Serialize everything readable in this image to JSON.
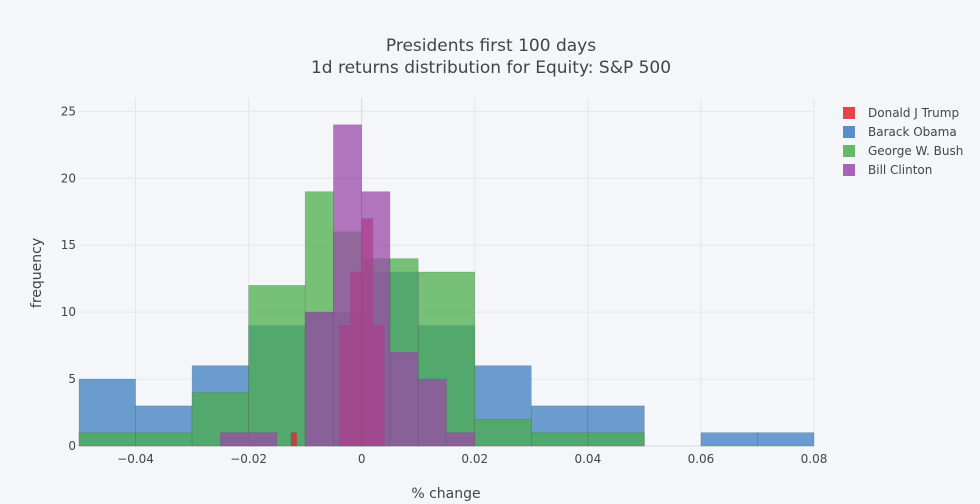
{
  "chart_data": {
    "type": "histogram",
    "title": "Presidents first 100 days",
    "subtitle": "1d returns distribution for Equity: S&P 500",
    "xlabel": "% change",
    "ylabel": "frequency",
    "xlim": [
      -0.05,
      0.08
    ],
    "ylim": [
      0,
      26
    ],
    "x_ticks": [
      -0.04,
      -0.02,
      0,
      0.02,
      0.04,
      0.06,
      0.08
    ],
    "x_tick_labels": [
      "−0.04",
      "−0.02",
      "0",
      "0.02",
      "0.04",
      "0.06",
      "0.08"
    ],
    "y_ticks": [
      0,
      5,
      10,
      15,
      20,
      25
    ],
    "y_tick_labels": [
      "0",
      "5",
      "10",
      "15",
      "20",
      "25"
    ],
    "grid": true,
    "legend_position": "top-right",
    "series": [
      {
        "name": "Barack Obama",
        "color": "#3b7dbd",
        "bins": [
          {
            "x0": -0.05,
            "x1": -0.04,
            "count": 5
          },
          {
            "x0": -0.04,
            "x1": -0.03,
            "count": 3
          },
          {
            "x0": -0.03,
            "x1": -0.02,
            "count": 6
          },
          {
            "x0": -0.02,
            "x1": -0.01,
            "count": 9
          },
          {
            "x0": -0.01,
            "x1": 0.0,
            "count": 10
          },
          {
            "x0": 0.0,
            "x1": 0.01,
            "count": 13
          },
          {
            "x0": 0.01,
            "x1": 0.02,
            "count": 9
          },
          {
            "x0": 0.02,
            "x1": 0.03,
            "count": 6
          },
          {
            "x0": 0.03,
            "x1": 0.04,
            "count": 3
          },
          {
            "x0": 0.04,
            "x1": 0.05,
            "count": 3
          },
          {
            "x0": 0.05,
            "x1": 0.06,
            "count": 0
          },
          {
            "x0": 0.06,
            "x1": 0.07,
            "count": 1
          },
          {
            "x0": 0.07,
            "x1": 0.08,
            "count": 1
          }
        ]
      },
      {
        "name": "George W. Bush",
        "color": "#4cae4c",
        "bins": [
          {
            "x0": -0.05,
            "x1": -0.04,
            "count": 1
          },
          {
            "x0": -0.04,
            "x1": -0.03,
            "count": 1
          },
          {
            "x0": -0.03,
            "x1": -0.02,
            "count": 4
          },
          {
            "x0": -0.02,
            "x1": -0.01,
            "count": 12
          },
          {
            "x0": -0.01,
            "x1": -0.005,
            "count": 19
          },
          {
            "x0": -0.005,
            "x1": 0.0,
            "count": 16
          },
          {
            "x0": 0.0,
            "x1": 0.005,
            "count": 14
          },
          {
            "x0": 0.005,
            "x1": 0.01,
            "count": 14
          },
          {
            "x0": 0.01,
            "x1": 0.02,
            "count": 13
          },
          {
            "x0": 0.02,
            "x1": 0.03,
            "count": 2
          },
          {
            "x0": 0.03,
            "x1": 0.04,
            "count": 1
          },
          {
            "x0": 0.04,
            "x1": 0.05,
            "count": 1
          }
        ]
      },
      {
        "name": "Donald J Trump",
        "color": "#e0242b",
        "bins": [
          {
            "x0": -0.0125,
            "x1": -0.0115,
            "count": 1
          },
          {
            "x0": -0.004,
            "x1": -0.002,
            "count": 9
          },
          {
            "x0": -0.002,
            "x1": 0.0,
            "count": 13
          },
          {
            "x0": 0.0,
            "x1": 0.002,
            "count": 17
          },
          {
            "x0": 0.002,
            "x1": 0.004,
            "count": 9
          }
        ]
      },
      {
        "name": "Bill Clinton",
        "color": "#9a4aa8",
        "bins": [
          {
            "x0": -0.025,
            "x1": -0.015,
            "count": 1
          },
          {
            "x0": -0.01,
            "x1": -0.005,
            "count": 10
          },
          {
            "x0": -0.005,
            "x1": 0.0,
            "count": 24
          },
          {
            "x0": 0.0,
            "x1": 0.005,
            "count": 19
          },
          {
            "x0": 0.005,
            "x1": 0.01,
            "count": 7
          },
          {
            "x0": 0.01,
            "x1": 0.015,
            "count": 5
          },
          {
            "x0": 0.015,
            "x1": 0.02,
            "count": 1
          }
        ]
      }
    ],
    "legend_order": [
      "Donald J Trump",
      "Barack Obama",
      "George W. Bush",
      "Bill Clinton"
    ]
  }
}
